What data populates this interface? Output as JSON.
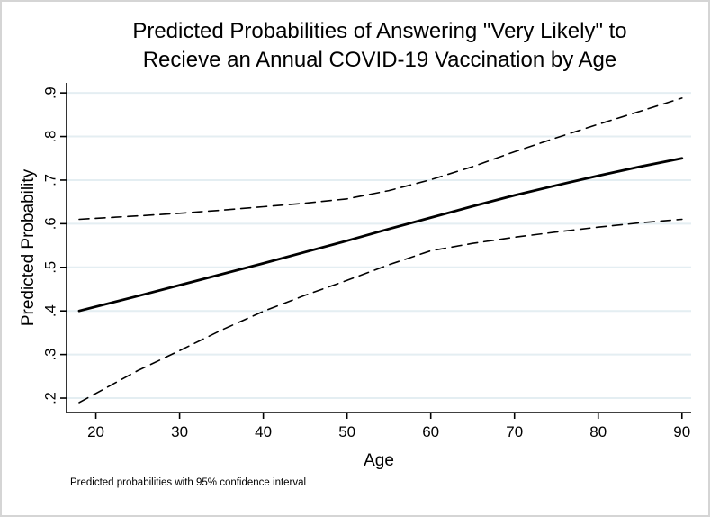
{
  "title": {
    "line1": "Predicted Probabilities of Answering \"Very Likely\" to",
    "line2": "Recieve an Annual COVID-19 Vaccination by Age"
  },
  "axes": {
    "x_label": "Age",
    "y_label": "Predicted Probability"
  },
  "footnote": "Predicted probabilities with 95% confidence interval",
  "colors": {
    "background": "#ffffff",
    "frame_border": "#d5d5d5",
    "grid": "#e4eef2",
    "axis": "#000000",
    "text": "#000000",
    "series": "#000000"
  },
  "chart_data": {
    "type": "line",
    "title": "Predicted Probabilities of Answering \"Very Likely\" to Recieve an Annual COVID-19 Vaccination by Age",
    "xlabel": "Age",
    "ylabel": "Predicted Probability",
    "note": "Predicted probabilities with 95% confidence interval",
    "grid": "horizontal-only",
    "legend_position": "none",
    "xlim": [
      16.5,
      91.1
    ],
    "ylim": [
      0.167,
      0.923
    ],
    "x_ticks": {
      "values": [
        20,
        30,
        40,
        50,
        60,
        70,
        80,
        90
      ],
      "labels": [
        "20",
        "30",
        "40",
        "50",
        "60",
        "70",
        "80",
        "90"
      ]
    },
    "y_ticks": {
      "values": [
        0.2,
        0.3,
        0.4,
        0.5,
        0.6,
        0.7,
        0.8,
        0.9
      ],
      "labels": [
        ".2",
        ".3",
        ".4",
        ".5",
        ".6",
        ".7",
        ".8",
        ".9"
      ]
    },
    "x": [
      18,
      25,
      30,
      35,
      40,
      45,
      50,
      55,
      60,
      65,
      70,
      75,
      80,
      85,
      90
    ],
    "series": [
      {
        "name": "predicted-probability",
        "style": "solid",
        "width": 2.8,
        "values": [
          0.4,
          0.434,
          0.459,
          0.484,
          0.509,
          0.535,
          0.561,
          0.588,
          0.614,
          0.64,
          0.665,
          0.688,
          0.71,
          0.731,
          0.75
        ]
      },
      {
        "name": "upper-95-ci",
        "style": "dashed",
        "width": 1.6,
        "values": [
          0.61,
          0.618,
          0.624,
          0.631,
          0.639,
          0.647,
          0.657,
          0.676,
          0.701,
          0.731,
          0.765,
          0.797,
          0.828,
          0.858,
          0.888
        ]
      },
      {
        "name": "lower-95-ci",
        "style": "dashed",
        "width": 1.6,
        "values": [
          0.19,
          0.263,
          0.309,
          0.356,
          0.399,
          0.436,
          0.47,
          0.506,
          0.538,
          0.555,
          0.569,
          0.581,
          0.592,
          0.602,
          0.61
        ]
      }
    ]
  }
}
